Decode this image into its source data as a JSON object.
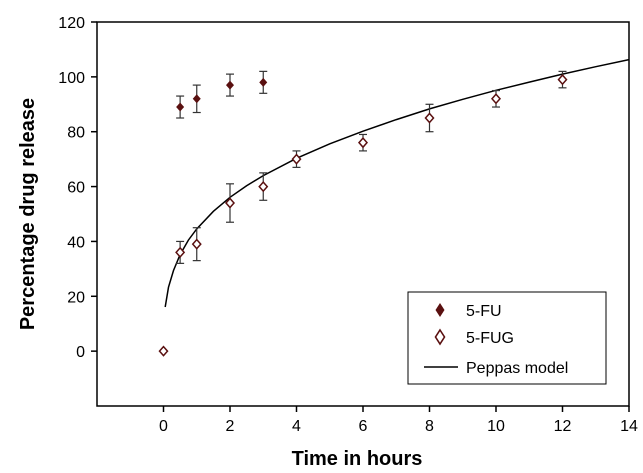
{
  "chart_data": {
    "type": "scatter",
    "xlabel": "Time in hours",
    "ylabel": "Percentage drug release",
    "xlim": [
      -2,
      14
    ],
    "ylim": [
      -20,
      120
    ],
    "x_ticks": [
      "0",
      "2",
      "4",
      "6",
      "8",
      "10",
      "12",
      "14"
    ],
    "y_ticks": [
      "0",
      "20",
      "40",
      "60",
      "80",
      "100",
      "120"
    ],
    "grid": false,
    "legend_position": "bottom-right",
    "series": [
      {
        "name": "5-FU",
        "marker": "filled-diamond",
        "color": "#5a1010",
        "points": [
          {
            "x": 0.5,
            "y": 89,
            "err": 4
          },
          {
            "x": 1,
            "y": 92,
            "err": 5
          },
          {
            "x": 2,
            "y": 97,
            "err": 4
          },
          {
            "x": 3,
            "y": 98,
            "err": 4
          }
        ]
      },
      {
        "name": "5-FUG",
        "marker": "open-diamond",
        "color": "#5a1010",
        "points": [
          {
            "x": 0,
            "y": 0,
            "err": 0
          },
          {
            "x": 0.5,
            "y": 36,
            "err": 4
          },
          {
            "x": 1,
            "y": 39,
            "err": 6
          },
          {
            "x": 2,
            "y": 54,
            "err": 7
          },
          {
            "x": 3,
            "y": 60,
            "err": 5
          },
          {
            "x": 4,
            "y": 70,
            "err": 3
          },
          {
            "x": 6,
            "y": 76,
            "err": 3
          },
          {
            "x": 8,
            "y": 85,
            "err": 5
          },
          {
            "x": 10,
            "y": 92,
            "err": 3
          },
          {
            "x": 12,
            "y": 99,
            "err": 3
          }
        ]
      },
      {
        "name": "Peppas model",
        "type": "line",
        "color": "#000000",
        "x": [
          0.05,
          0.15,
          0.3,
          0.5,
          0.75,
          1,
          1.5,
          2,
          2.5,
          3,
          4,
          5,
          6,
          7,
          8,
          9,
          10,
          11,
          12,
          13,
          14
        ],
        "y": [
          16.1,
          23.3,
          29.4,
          35.2,
          40.5,
          44.6,
          51.0,
          56.1,
          60.3,
          64.0,
          70.3,
          75.6,
          80.2,
          84.4,
          88.3,
          91.8,
          95.1,
          98.1,
          101.0,
          103.7,
          106.3
        ]
      }
    ]
  }
}
